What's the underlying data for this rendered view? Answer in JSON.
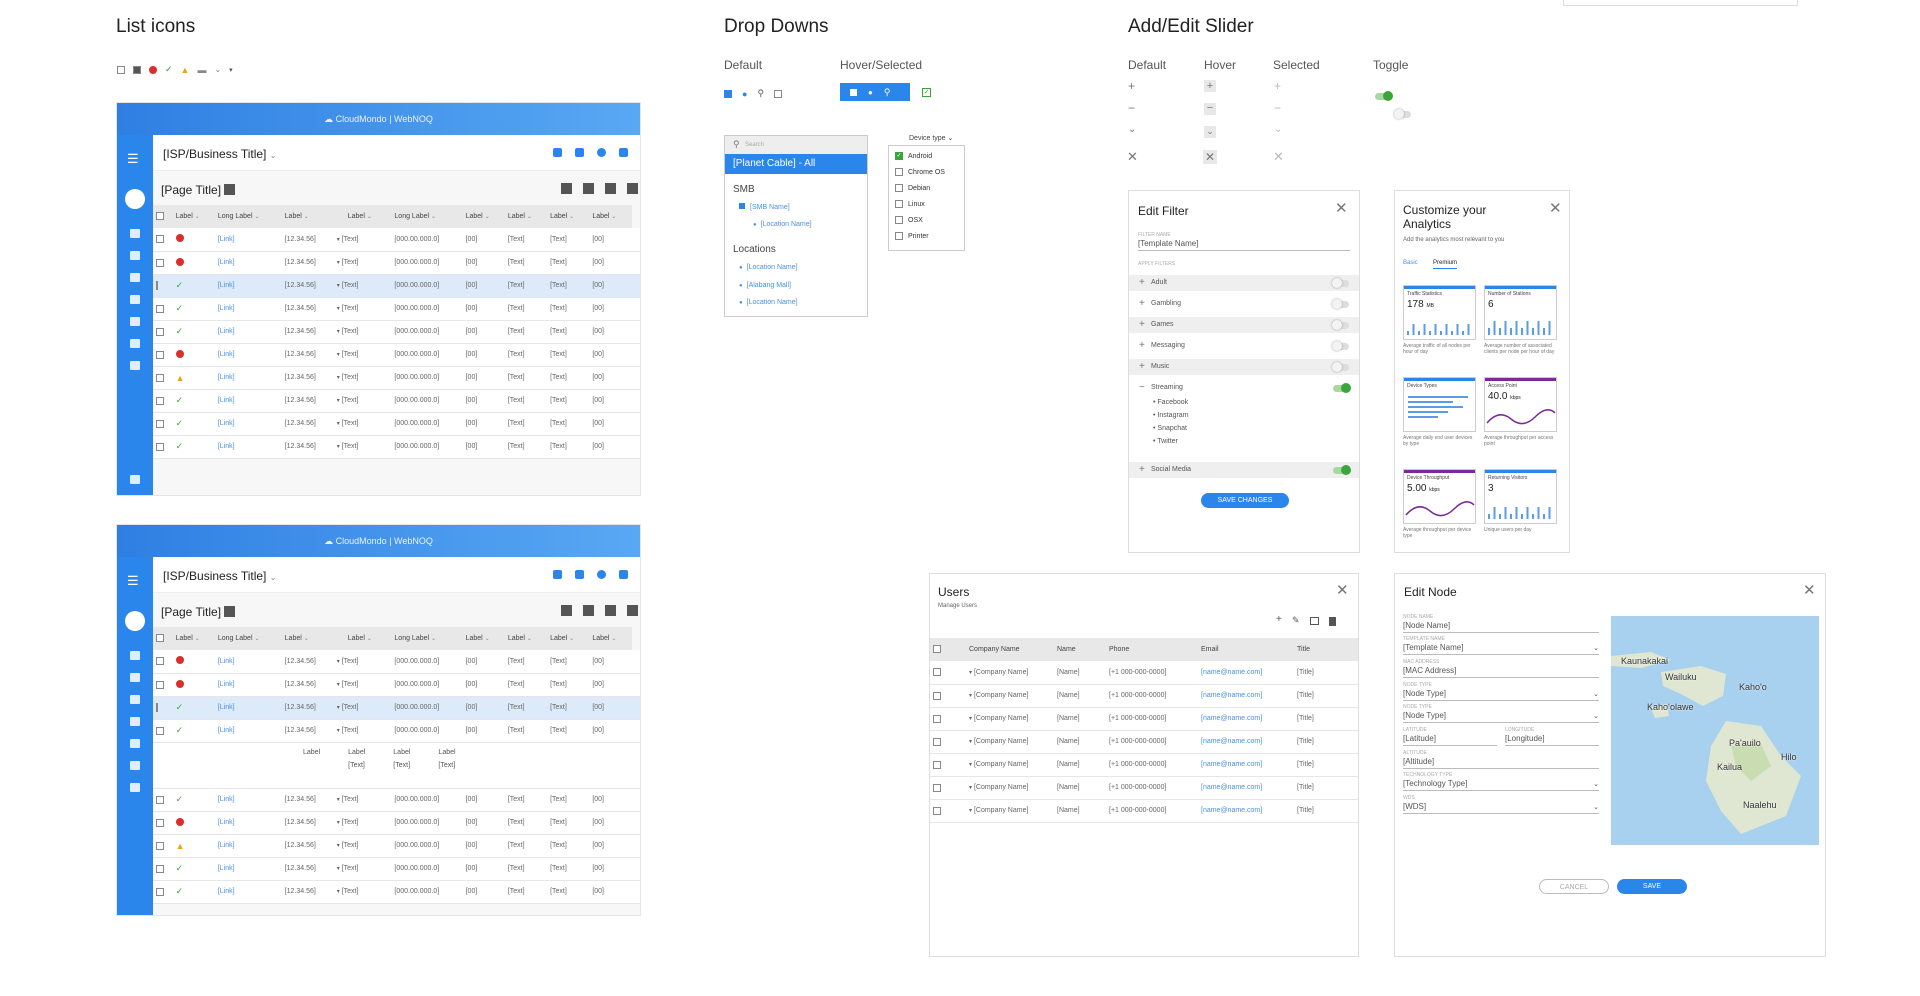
{
  "sections": {
    "list_icons": "List icons",
    "drop_downs": "Drop Downs",
    "add_edit_slider": "Add/Edit Slider"
  },
  "dropdowns": {
    "default_label": "Default",
    "hover_label": "Hover/Selected",
    "search_placeholder": "Search",
    "selected_item": "[Planet Cable] - All",
    "group_smb": "SMB",
    "smb_name": "[SMB Name]",
    "location_name": "[Location Name]",
    "group_locations": "Locations",
    "loc1": "[Location Name]",
    "loc2": "[Alabang Mall]",
    "loc3": "[Location Name]",
    "device_type_label": "Device type",
    "device_types": [
      {
        "label": "Android",
        "checked": true
      },
      {
        "label": "Chrome OS",
        "checked": false
      },
      {
        "label": "Debian",
        "checked": false
      },
      {
        "label": "Linux",
        "checked": false
      },
      {
        "label": "OSX",
        "checked": false
      },
      {
        "label": "Printer",
        "checked": false
      }
    ]
  },
  "slider": {
    "default": "Default",
    "hover": "Hover",
    "selected": "Selected",
    "toggle": "Toggle"
  },
  "panel": {
    "brand": "CloudMondo",
    "product": "WebNOQ",
    "business_title": "[ISP/Business Title]",
    "page_title": "[Page Title]",
    "headers": [
      "Label",
      "Long Label",
      "Label",
      "Label",
      "Long Label",
      "Label",
      "Label",
      "Label",
      "Label"
    ],
    "link": "[Link]",
    "time": "12.34.56",
    "text": "[Text]",
    "ip": "[000.00.000.0]",
    "num": "[00]",
    "rows1": [
      "err",
      "err",
      "ok",
      "ok",
      "ok",
      "err",
      "warn",
      "ok",
      "ok",
      "ok"
    ],
    "rows2_top": [
      "err",
      "err",
      "ok",
      "ok"
    ],
    "rows2_bottom": [
      "ok",
      "err",
      "warn",
      "ok",
      "ok"
    ],
    "expand_labels": [
      "Label",
      "Label",
      "Label",
      "Label"
    ],
    "expand_text": "[Text]"
  },
  "edit_filter": {
    "title": "Edit Filter",
    "filter_name_label": "FILTER NAME",
    "filter_name": "[Template Name]",
    "apply_filters": "APPLY FILTERS",
    "items": [
      {
        "label": "Adult",
        "on": false
      },
      {
        "label": "Gambling",
        "on": false
      },
      {
        "label": "Games",
        "on": false
      },
      {
        "label": "Messaging",
        "on": false
      },
      {
        "label": "Music",
        "on": false
      },
      {
        "label": "Streaming",
        "on": true
      },
      {
        "label": "Social Media",
        "on": true
      }
    ],
    "streaming_children": [
      "Facebook",
      "Instagram",
      "Snapchat",
      "Twitter"
    ],
    "save": "SAVE CHANGES"
  },
  "analytics": {
    "title": "Customize your Analytics",
    "subtitle": "Add the analytics most relevant to you",
    "tab_basic": "Basic",
    "tab_premium": "Premium",
    "cards": [
      {
        "title": "Traffic Statistics",
        "value": "178",
        "unit": "MB",
        "caption": "Average traffic of all nodes per hour of day"
      },
      {
        "title": "Number of Stations",
        "value": "6",
        "unit": "",
        "caption": "Average number of associated clients per node per hour of day"
      },
      {
        "title": "Device Types",
        "value": "",
        "unit": "",
        "caption": "Average daily end user devices by type"
      },
      {
        "title": "Access Point",
        "value": "40.0",
        "unit": "kbps",
        "caption": "Average throughput per access point"
      },
      {
        "title": "Device Throughput",
        "value": "5.00",
        "unit": "kbps",
        "caption": "Average throughput per device type"
      },
      {
        "title": "Returning Visitors",
        "value": "3",
        "unit": "",
        "caption": "Unique users per day"
      }
    ]
  },
  "users": {
    "title": "Users",
    "subtitle": "Manage Users",
    "headers": [
      "Company Name",
      "Name",
      "Phone",
      "Email",
      "Title"
    ],
    "company": "[Company Name]",
    "name": "[Name]",
    "phone": "[+1 000-000-0000]",
    "email": "[name@name.com]",
    "title_val": "[Title]",
    "row_count": 7
  },
  "edit_node": {
    "title": "Edit Node",
    "fields": [
      {
        "label": "NODE NAME",
        "value": "[Node Name]"
      },
      {
        "label": "TEMPLATE NAME",
        "value": "[Template Name]"
      },
      {
        "label": "MAC ADDRESS",
        "value": "[MAC Address]"
      },
      {
        "label": "NODE TYPE",
        "value": "[Node Type]"
      },
      {
        "label": "NODE TYPE",
        "value": "[Node Type]"
      },
      {
        "label": "LATITUDE",
        "value": "[Latitude]"
      },
      {
        "label": "LONGITUDE",
        "value": "[Longitude]"
      },
      {
        "label": "ALTITUDE",
        "value": "[Altitude]"
      },
      {
        "label": "TECHNOLOGY TYPE",
        "value": "[Technology Type]"
      },
      {
        "label": "WDS",
        "value": "[WDS]"
      }
    ],
    "cancel": "CANCEL",
    "save": "SAVE",
    "map_labels": [
      "Kaunakakai",
      "Wailuku",
      "Kahului",
      "Kaho‘olawe",
      "Pa'auilo",
      "Hilo",
      "Kailua",
      "Naalehu"
    ],
    "map_label_kahului": "Kaho'o"
  }
}
